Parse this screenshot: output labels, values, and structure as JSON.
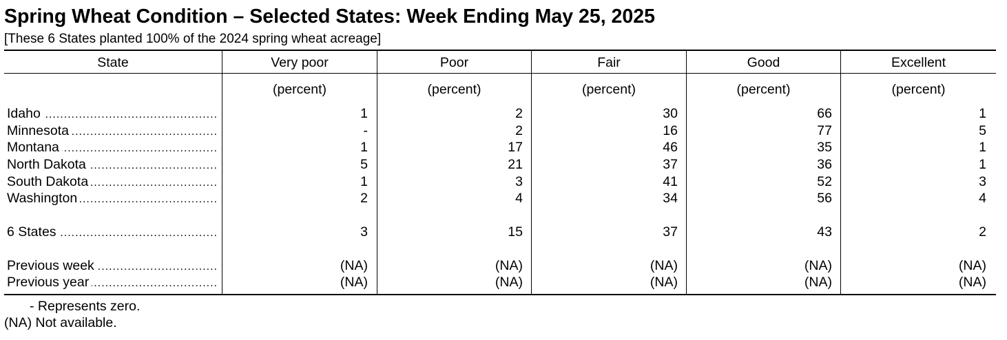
{
  "title": "Spring Wheat Condition – Selected States: Week Ending May 25, 2025",
  "subtitle": "[These 6 States planted 100% of the 2024 spring wheat acreage]",
  "columns": [
    "State",
    "Very poor",
    "Poor",
    "Fair",
    "Good",
    "Excellent"
  ],
  "unit_label": "(percent)",
  "rows": [
    {
      "state": "Idaho",
      "values": [
        "1",
        "2",
        "30",
        "66",
        "1"
      ]
    },
    {
      "state": "Minnesota",
      "values": [
        "-",
        "2",
        "16",
        "77",
        "5"
      ]
    },
    {
      "state": "Montana",
      "values": [
        "1",
        "17",
        "46",
        "35",
        "1"
      ]
    },
    {
      "state": "North Dakota",
      "values": [
        "5",
        "21",
        "37",
        "36",
        "1"
      ]
    },
    {
      "state": "South Dakota",
      "values": [
        "1",
        "3",
        "41",
        "52",
        "3"
      ]
    },
    {
      "state": "Washington",
      "values": [
        "2",
        "4",
        "34",
        "56",
        "4"
      ]
    }
  ],
  "total": {
    "state": "6 States",
    "values": [
      "3",
      "15",
      "37",
      "43",
      "2"
    ]
  },
  "comparisons": [
    {
      "state": "Previous week",
      "values": [
        "(NA)",
        "(NA)",
        "(NA)",
        "(NA)",
        "(NA)"
      ]
    },
    {
      "state": "Previous year",
      "values": [
        "(NA)",
        "(NA)",
        "(NA)",
        "(NA)",
        "(NA)"
      ]
    }
  ],
  "footnotes": [
    "- Represents zero.",
    "(NA) Not available."
  ]
}
